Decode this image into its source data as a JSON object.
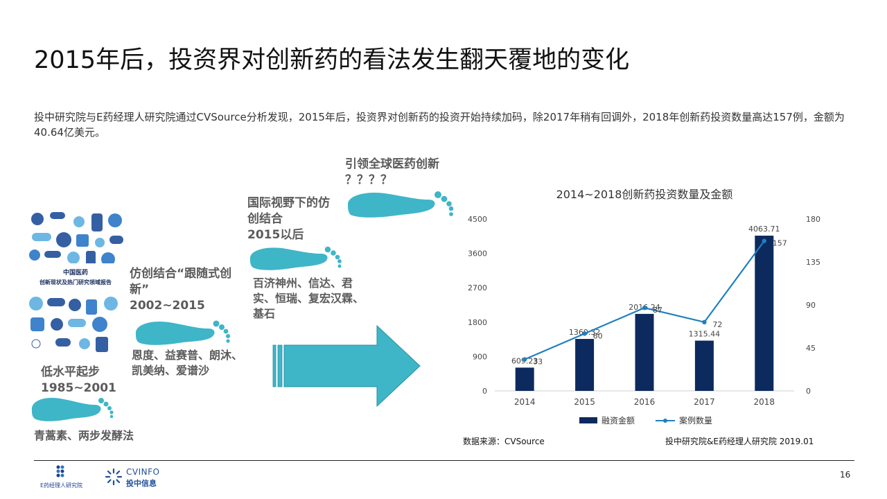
{
  "title": "2015年后，投资界对创新药的看法发生翻天覆地的变化",
  "summary": "投中研究院与E药经理人研究院通过CVSource分析发现，2015年后，投资界对创新药的投资开始持续加码，除2017年稍有回调外，2018年创新药投资数量高达157例，金额为40.64亿美元。",
  "report_cover": {
    "title_line1": "中国医药",
    "title_line2": "创新现状及热门研究领域报告"
  },
  "stages": [
    {
      "title_line1": "低水平起步",
      "title_line2": "1985~2001",
      "desc_line1": "青蒿素、两步发酵法",
      "desc_line2": ""
    },
    {
      "title_line1": "仿创结合“跟随式创",
      "title_line2": "新”",
      "title_line3": "2002~2015",
      "desc_line1": "恩度、益赛普、朗沐、",
      "desc_line2": "凯美纳、爱谱沙"
    },
    {
      "title_line1": "国际视野下的仿",
      "title_line2": "创结合",
      "title_line3": "2015以后",
      "desc_line1": "百济神州、信达、君",
      "desc_line2": "实、恒瑞、复宏汉霖、",
      "desc_line3": "基石"
    },
    {
      "title_line1": "引领全球医药创新",
      "title_line2": "？？？？"
    }
  ],
  "colors": {
    "footprint": "#3fb5c8",
    "bar": "#0d2a5e",
    "line": "#1f7fbf",
    "arrow": "#3fb5c8"
  },
  "chart_data": {
    "type": "bar",
    "title": "2014~2018创新药投资数量及金额",
    "categories": [
      "2014",
      "2015",
      "2016",
      "2017",
      "2018"
    ],
    "series": [
      {
        "name": "融资金额",
        "type": "bar",
        "axis": "left",
        "values": [
          609.23,
          1360.32,
          2016.24,
          1315.44,
          4063.71
        ],
        "labels": [
          "609.23",
          "1360.32",
          "2016.24",
          "1315.44",
          "4063.71"
        ]
      },
      {
        "name": "案例数量",
        "type": "line",
        "axis": "right",
        "values": [
          33,
          60,
          87,
          72,
          157
        ],
        "labels": [
          "33",
          "60",
          "87",
          "72",
          "157"
        ]
      }
    ],
    "left_axis": {
      "min": 0,
      "max": 4500,
      "ticks": [
        "0",
        "900",
        "1800",
        "2700",
        "3600",
        "4500"
      ]
    },
    "right_axis": {
      "min": 0,
      "max": 180,
      "ticks": [
        "0",
        "45",
        "90",
        "135",
        "180"
      ]
    },
    "legend_position": "bottom",
    "grid": false
  },
  "source_left": "数据来源：CVSource",
  "source_right": "投中研究院&E药经理人研究院   2019.01",
  "footer": {
    "logo1_label": "E药经理人研究院",
    "logo2_brand": "CVINFO",
    "logo2_label": "投中信息"
  },
  "page_number": "16"
}
